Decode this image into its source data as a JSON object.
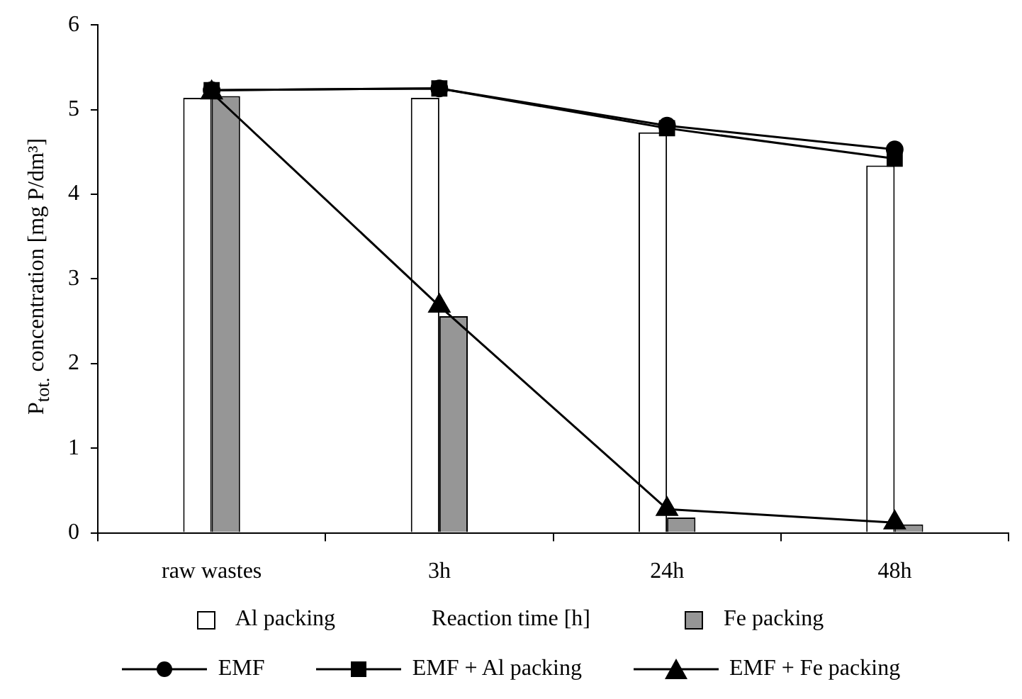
{
  "chart_data": {
    "type": "bar",
    "xlabel": "Reaction time [h]",
    "ylabel": "P$_{tot.}$ concentration [mg P/dm³]",
    "categories": [
      "raw wastes",
      "3h",
      "24h",
      "48h"
    ],
    "ylim": [
      0,
      6
    ],
    "yticks": [
      0,
      1,
      2,
      3,
      4,
      5,
      6
    ],
    "grid": false,
    "legend": "bottom",
    "series": [
      {
        "name": "Al packing",
        "type": "bar",
        "color": "#ffffff",
        "values": [
          5.14,
          5.14,
          4.73,
          4.34
        ]
      },
      {
        "name": "Fe packing",
        "type": "bar",
        "color": "#969696",
        "values": [
          5.16,
          2.56,
          0.18,
          0.1
        ]
      },
      {
        "name": "EMF",
        "type": "line",
        "color": "#000000",
        "marker": "circle",
        "values": [
          5.23,
          5.25,
          4.81,
          4.53
        ]
      },
      {
        "name": "EMF + Al packing",
        "type": "line",
        "color": "#000000",
        "marker": "square",
        "values": [
          5.23,
          5.25,
          4.78,
          4.42
        ]
      },
      {
        "name": "EMF + Fe packing",
        "type": "line",
        "color": "#000000",
        "marker": "triangle",
        "values": [
          5.2,
          2.68,
          0.28,
          0.12
        ]
      }
    ]
  }
}
